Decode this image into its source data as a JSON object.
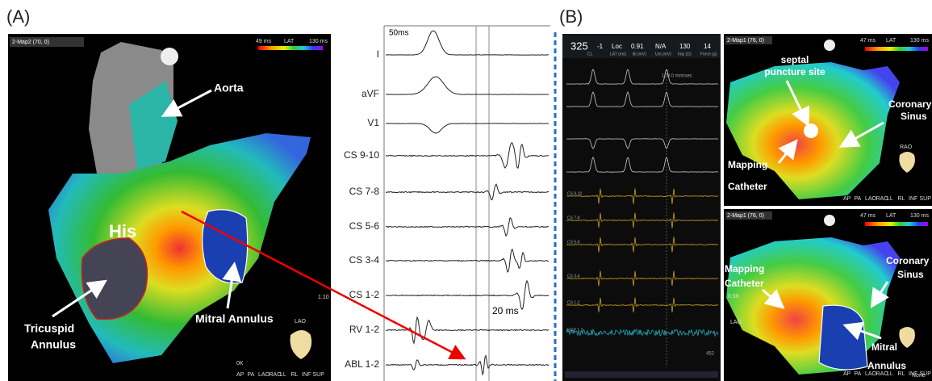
{
  "panel_a": {
    "label": "(A)",
    "map": {
      "header": "2-Map2 (70, 0)",
      "scale_min": "49 ms",
      "scale_name": "LAT",
      "scale_max": "130 ms",
      "view": "LAO",
      "zoom": "1.10",
      "status": "0K"
    },
    "annotations": {
      "aorta": "Aorta",
      "his": "His",
      "tricuspid_annulus": [
        "Tricuspid",
        "Annulus"
      ],
      "mitral_annulus": "Mitral Annulus"
    },
    "ecg": {
      "time_scale": "50ms",
      "leads": [
        "I",
        "aVF",
        "V1",
        "CS 9-10",
        "CS 7-8",
        "CS 5-6",
        "CS 3-4",
        "CS 1-2",
        "RV 1-2",
        "ABL 1-2"
      ],
      "interval": "20 ms"
    }
  },
  "views": [
    "AP",
    "PA",
    "LAO",
    "RAO",
    "LL",
    "RL",
    "INF",
    "SUP"
  ],
  "panel_b": {
    "label": "(B)",
    "status_bar": {
      "values": [
        "325",
        "-1",
        "Loc",
        "0.91",
        "N/A",
        "130",
        "14"
      ],
      "captions": [
        "CL",
        "LAT (ms)",
        "Bi (mV)",
        "Uni (mV)",
        "Imp (Ω)",
        "Force (g)"
      ]
    },
    "egm": {
      "sweep": "100.0 mm/sec",
      "channels": [
        "CS 9-10",
        "CS 7-8",
        "CS 5-6",
        "CS 3-4",
        "CS 1-2",
        "MAP 1-2"
      ],
      "footer": "452"
    },
    "map_top": {
      "header": "2-Map1 (76, 0)",
      "scale_min": "47 ms",
      "scale_name": "LAT",
      "scale_max": "130 ms",
      "view": "RAO",
      "annotations": {
        "septal_puncture_site": [
          "septal",
          "puncture site"
        ],
        "coronary_sinus": [
          "Coronary",
          "Sinus"
        ],
        "mapping_catheter": [
          "Mapping",
          "Catheter"
        ]
      }
    },
    "map_bottom": {
      "header": "2-Map1 (76, 0)",
      "scale_min": "47 ms",
      "scale_name": "LAT",
      "scale_max": "130 ms",
      "view": "LAO",
      "zoom": "0.68",
      "status": "None",
      "annotations": {
        "mapping_catheter": [
          "Mapping",
          "Catheter"
        ],
        "coronary_sinus": [
          "Coronary",
          "Sinus"
        ],
        "mitral_annulus": [
          "Mitral",
          "Annulus"
        ]
      }
    }
  }
}
